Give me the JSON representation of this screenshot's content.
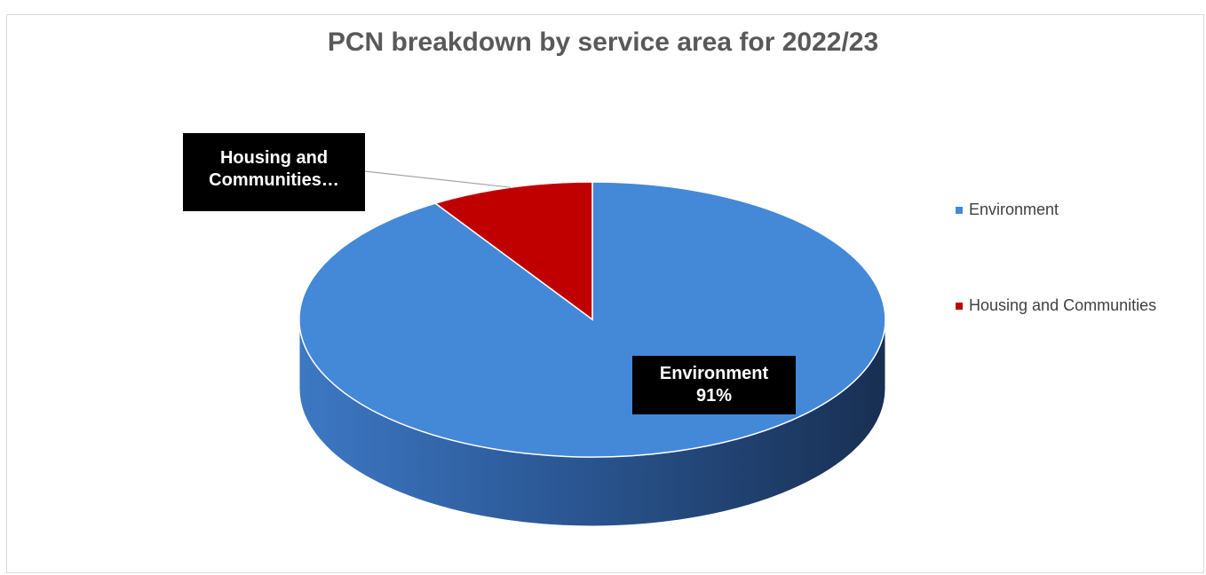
{
  "chart_data": {
    "type": "pie",
    "title": "PCN breakdown by service area for 2022/23",
    "categories": [
      "Environment",
      "Housing and Communities"
    ],
    "values": [
      91,
      9
    ],
    "unit": "%",
    "colors": [
      "#4488d8",
      "#c00000"
    ],
    "data_labels": {
      "environment": {
        "line1": "Environment",
        "line2": "91%"
      },
      "housing": {
        "line1": "Housing and",
        "line2": "Communities…"
      }
    },
    "legend": {
      "position": "right",
      "items": [
        "Environment",
        "Housing and Communities"
      ]
    },
    "style": "3d"
  }
}
